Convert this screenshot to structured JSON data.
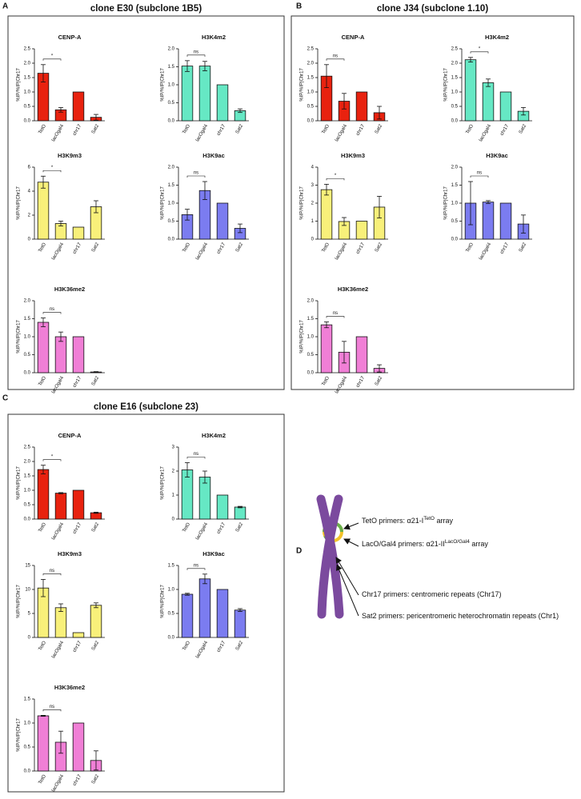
{
  "panels": [
    {
      "letter": "A",
      "title": "clone E30 (subclone 1B5)"
    },
    {
      "letter": "B",
      "title": "clone J34 (subclone 1.10)"
    },
    {
      "letter": "C",
      "title": "clone E16 (subclone 23)"
    }
  ],
  "chart_data": [
    {
      "type": "bar",
      "title": "CENP-A",
      "y_label": "%IP/%IP|Chr17",
      "categories": [
        "TetO",
        "lacOgal4",
        "chr17",
        "Sat2"
      ],
      "values": [
        1.65,
        0.38,
        1.0,
        0.12
      ],
      "errors": [
        0.3,
        0.08,
        null,
        0.1
      ],
      "color": "#e8220f",
      "ylim": [
        0,
        2.5
      ],
      "yticks": [
        {
          "value": 0,
          "label": "0.0"
        },
        {
          "value": 0.5,
          "label": "0.5"
        },
        {
          "value": 1,
          "label": "1.0"
        },
        {
          "value": 1.5,
          "label": "1.5"
        },
        {
          "value": 2,
          "label": "2.0"
        },
        {
          "value": 2.5,
          "label": "2.5"
        }
      ],
      "annotation": "*"
    },
    {
      "type": "bar",
      "title": "H3K4m2",
      "y_label": "%IP/%IP|Chr17",
      "categories": [
        "TetO",
        "lacOgal4",
        "chr17",
        "Sat2"
      ],
      "values": [
        1.52,
        1.52,
        1.0,
        0.28
      ],
      "errors": [
        0.15,
        0.13,
        null,
        0.05
      ],
      "color": "#66e8c4",
      "ylim": [
        0,
        2
      ],
      "yticks": [
        {
          "value": 0,
          "label": "0.0"
        },
        {
          "value": 0.5,
          "label": "0.5"
        },
        {
          "value": 1,
          "label": "1.0"
        },
        {
          "value": 1.5,
          "label": "1.5"
        },
        {
          "value": 2,
          "label": "2.0"
        }
      ],
      "annotation": "ns"
    },
    {
      "type": "bar",
      "title": "H3K9m3",
      "y_label": "%IP/%IP|Chr17",
      "categories": [
        "TetO",
        "lacOgal4",
        "chr17",
        "Sat2"
      ],
      "values": [
        4.75,
        1.3,
        1.0,
        2.7
      ],
      "errors": [
        0.5,
        0.2,
        null,
        0.5
      ],
      "color": "#f8f07a",
      "ylim": [
        0,
        6
      ],
      "yticks": [
        0,
        2,
        4,
        6
      ],
      "annotation": "*"
    },
    {
      "type": "bar",
      "title": "H3K9ac",
      "y_label": "%IP/%IP|Chr17",
      "categories": [
        "TetO",
        "lacOgal4",
        "chr17",
        "Sat2"
      ],
      "values": [
        0.68,
        1.35,
        1.0,
        0.3
      ],
      "errors": [
        0.15,
        0.25,
        null,
        0.12
      ],
      "color": "#7b7cf0",
      "ylim": [
        0,
        2
      ],
      "yticks": [
        {
          "value": 0,
          "label": "0.0"
        },
        {
          "value": 0.5,
          "label": "0.5"
        },
        {
          "value": 1,
          "label": "1.0"
        },
        {
          "value": 1.5,
          "label": "1.5"
        },
        {
          "value": 2,
          "label": "2.0"
        }
      ],
      "annotation": "ns"
    },
    {
      "type": "bar",
      "title": "H3K36me2",
      "y_label": "%IP/%IP|Chr17",
      "categories": [
        "TetO",
        "lacOgal4",
        "chr17",
        "Sat2"
      ],
      "values": [
        1.4,
        1.0,
        1.0,
        0.02
      ],
      "errors": [
        0.12,
        0.13,
        null,
        0.01
      ],
      "color": "#f07fd6",
      "ylim": [
        0,
        2
      ],
      "yticks": [
        {
          "value": 0,
          "label": "0.0"
        },
        {
          "value": 0.5,
          "label": "0.5"
        },
        {
          "value": 1,
          "label": "1.0"
        },
        {
          "value": 1.5,
          "label": "1.5"
        },
        {
          "value": 2,
          "label": "2.0"
        }
      ],
      "annotation": "ns"
    },
    {
      "type": "bar",
      "title": "CENP-A",
      "y_label": "%IP/%IP|Chr17",
      "categories": [
        "TetO",
        "lacOgal4",
        "chr17",
        "Sat2"
      ],
      "values": [
        1.55,
        0.68,
        1.0,
        0.28
      ],
      "errors": [
        0.4,
        0.27,
        null,
        0.22
      ],
      "color": "#e8220f",
      "ylim": [
        0,
        2.5
      ],
      "yticks": [
        {
          "value": 0,
          "label": "0.0"
        },
        {
          "value": 0.5,
          "label": "0.5"
        },
        {
          "value": 1,
          "label": "1.0"
        },
        {
          "value": 1.5,
          "label": "1.5"
        },
        {
          "value": 2,
          "label": "2.0"
        },
        {
          "value": 2.5,
          "label": "2.5"
        }
      ],
      "annotation": "ns"
    },
    {
      "type": "bar",
      "title": "H3K4m2",
      "y_label": "%IP/%IP|Chr17",
      "categories": [
        "TetO",
        "lacOgal4",
        "chr17",
        "Sat2"
      ],
      "values": [
        2.12,
        1.32,
        1.0,
        0.33
      ],
      "errors": [
        0.08,
        0.13,
        null,
        0.13
      ],
      "color": "#66e8c4",
      "ylim": [
        0,
        2.5
      ],
      "yticks": [
        {
          "value": 0,
          "label": "0.0"
        },
        {
          "value": 0.5,
          "label": "0.5"
        },
        {
          "value": 1,
          "label": "1.0"
        },
        {
          "value": 1.5,
          "label": "1.5"
        },
        {
          "value": 2,
          "label": "2.0"
        },
        {
          "value": 2.5,
          "label": "2.5"
        }
      ],
      "annotation": "*"
    },
    {
      "type": "bar",
      "title": "H3K9m3",
      "y_label": "%IP/%IP|Chr17",
      "categories": [
        "TetO",
        "lacOgal4",
        "chr17",
        "Sat2"
      ],
      "values": [
        2.75,
        0.98,
        1.0,
        1.78
      ],
      "errors": [
        0.3,
        0.22,
        null,
        0.6
      ],
      "color": "#f8f07a",
      "ylim": [
        0,
        4
      ],
      "yticks": [
        0,
        1,
        2,
        3,
        4
      ],
      "annotation": "*"
    },
    {
      "type": "bar",
      "title": "H3K9ac",
      "y_label": "%IP/%IP|Chr17",
      "categories": [
        "TetO",
        "lacOgal4",
        "chr17",
        "Sat2"
      ],
      "values": [
        1.0,
        1.03,
        1.0,
        0.42
      ],
      "errors": [
        0.6,
        0.04,
        null,
        0.25
      ],
      "color": "#7b7cf0",
      "ylim": [
        0,
        2
      ],
      "yticks": [
        {
          "value": 0,
          "label": "0.0"
        },
        {
          "value": 0.5,
          "label": "0.5"
        },
        {
          "value": 1,
          "label": "1.0"
        },
        {
          "value": 1.5,
          "label": "1.5"
        },
        {
          "value": 2,
          "label": "2.0"
        }
      ],
      "annotation": "ns"
    },
    {
      "type": "bar",
      "title": "H3K36me2",
      "y_label": "%IP/%IP|Chr17",
      "categories": [
        "TetO",
        "lacOgal4",
        "chr17",
        "Sat2"
      ],
      "values": [
        1.33,
        0.57,
        1.0,
        0.12
      ],
      "errors": [
        0.08,
        0.3,
        null,
        0.1
      ],
      "color": "#f07fd6",
      "ylim": [
        0,
        2
      ],
      "yticks": [
        {
          "value": 0,
          "label": "0.0"
        },
        {
          "value": 0.5,
          "label": "0.5"
        },
        {
          "value": 1,
          "label": "1.0"
        },
        {
          "value": 1.5,
          "label": "1.5"
        },
        {
          "value": 2,
          "label": "2.0"
        }
      ],
      "annotation": "ns"
    },
    {
      "type": "bar",
      "title": "CENP-A",
      "y_label": "%IP/%IP|Chr17",
      "categories": [
        "TetO",
        "lacOgal4",
        "chr17",
        "Sat2"
      ],
      "values": [
        1.72,
        0.9,
        1.0,
        0.22
      ],
      "errors": [
        0.15,
        0.02,
        null,
        0.02
      ],
      "color": "#e8220f",
      "ylim": [
        0,
        2.5
      ],
      "yticks": [
        {
          "value": 0,
          "label": "0.0"
        },
        {
          "value": 0.5,
          "label": "0.5"
        },
        {
          "value": 1,
          "label": "1.0"
        },
        {
          "value": 1.5,
          "label": "1.5"
        },
        {
          "value": 2,
          "label": "2.0"
        },
        {
          "value": 2.5,
          "label": "2.5"
        }
      ],
      "annotation": "*"
    },
    {
      "type": "bar",
      "title": "H3K4m2",
      "y_label": "%IP/%IP|Chr17",
      "categories": [
        "TetO",
        "lacOgal4",
        "chr17",
        "Sat2"
      ],
      "values": [
        2.05,
        1.75,
        1.0,
        0.5
      ],
      "errors": [
        0.3,
        0.25,
        null,
        0.03
      ],
      "color": "#66e8c4",
      "ylim": [
        0,
        3
      ],
      "yticks": [
        0,
        1,
        2,
        3
      ],
      "annotation": "ns"
    },
    {
      "type": "bar",
      "title": "H3K9m3",
      "y_label": "%IP/%IP|Chr17",
      "categories": [
        "TetO",
        "lacOgal4",
        "chr17",
        "Sat2"
      ],
      "values": [
        10.3,
        6.2,
        1.0,
        6.7
      ],
      "errors": [
        1.8,
        0.8,
        null,
        0.5
      ],
      "color": "#f8f07a",
      "ylim": [
        0,
        15
      ],
      "yticks": [
        0,
        5,
        10,
        15
      ],
      "annotation": "ns"
    },
    {
      "type": "bar",
      "title": "H3K9ac",
      "y_label": "%IP/%IP|Chr17",
      "categories": [
        "TetO",
        "lacOgal4",
        "chr17",
        "Sat2"
      ],
      "values": [
        0.9,
        1.22,
        1.0,
        0.57
      ],
      "errors": [
        0.02,
        0.1,
        null,
        0.03
      ],
      "color": "#7b7cf0",
      "ylim": [
        0,
        1.5
      ],
      "yticks": [
        {
          "value": 0,
          "label": "0.0"
        },
        {
          "value": 0.5,
          "label": "0.5"
        },
        {
          "value": 1,
          "label": "1.0"
        },
        {
          "value": 1.5,
          "label": "1.5"
        }
      ],
      "annotation": "ns"
    },
    {
      "type": "bar",
      "title": "H3K36me2",
      "y_label": "%IP/%IP|Chr17",
      "categories": [
        "TetO",
        "lacOgal4",
        "chr17",
        "Sat2"
      ],
      "values": [
        1.15,
        0.6,
        1.0,
        0.22
      ],
      "errors": [
        0.01,
        0.23,
        null,
        0.2
      ],
      "color": "#f07fd6",
      "ylim": [
        0,
        1.5
      ],
      "yticks": [
        {
          "value": 0,
          "label": "0.0"
        },
        {
          "value": 0.5,
          "label": "0.5"
        },
        {
          "value": 1,
          "label": "1.0"
        },
        {
          "value": 1.5,
          "label": "1.5"
        }
      ],
      "annotation": "ns"
    }
  ],
  "diagram": {
    "letter": "D",
    "labels": [
      {
        "text": "TetO primers: α21-I",
        "sup": "TetO",
        "suffix": " array"
      },
      {
        "text": "LacO/Gal4 primers: α21-II",
        "sup": "LacO/Gal4",
        "suffix": " array"
      },
      {
        "text": "Chr17 primers: centromeric repeats (Chr17)"
      },
      {
        "text": "Sat2 primers: pericentromeric heterochromatin repeats (Chr1)"
      }
    ]
  }
}
